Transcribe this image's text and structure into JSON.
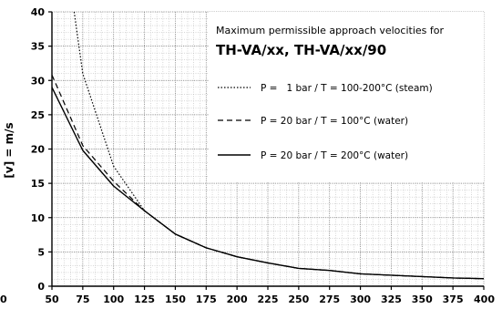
{
  "chart_data": {
    "type": "line",
    "title_line1": "Maximum permissible approach velocities for",
    "title_line2": "TH-VA/xx, TH-VA/xx/90",
    "xlabel": "",
    "ylabel": "[v] = m/s",
    "xlim": [
      50,
      400
    ],
    "ylim": [
      0,
      40
    ],
    "x_ticks": [
      50,
      75,
      100,
      125,
      150,
      175,
      200,
      225,
      250,
      275,
      300,
      325,
      350,
      375,
      400
    ],
    "y_ticks": [
      0,
      5,
      10,
      15,
      20,
      25,
      30,
      35,
      40
    ],
    "x_tick_labels": [
      "50",
      "75",
      "100",
      "125",
      "150",
      "175",
      "200",
      "225",
      "250",
      "275",
      "300",
      "325",
      "350",
      "375",
      "400"
    ],
    "y_tick_labels": [
      "0",
      "5",
      "10",
      "15",
      "20",
      "25",
      "30",
      "35",
      "40"
    ],
    "stray_left_label": "0",
    "grid": true,
    "legend_position": "top-right",
    "series": [
      {
        "name": "P =   1 bar / T = 100-200°C (steam)",
        "style": "dotted",
        "x": [
          68,
          75,
          100,
          125,
          150,
          175,
          200,
          225,
          250,
          275,
          300,
          325,
          350,
          375,
          400
        ],
        "y": [
          40,
          31,
          17.5,
          11,
          7.6,
          5.6,
          4.3,
          3.4,
          2.6,
          2.3,
          1.8,
          1.6,
          1.4,
          1.2,
          1.1
        ]
      },
      {
        "name": "P = 20 bar / T = 100°C (water)",
        "style": "dashed",
        "x": [
          50,
          75,
          100,
          125,
          150,
          175,
          200,
          225,
          250,
          275,
          300,
          325,
          350,
          375,
          400
        ],
        "y": [
          30.8,
          20.5,
          15.3,
          11,
          7.6,
          5.6,
          4.3,
          3.4,
          2.6,
          2.3,
          1.8,
          1.6,
          1.4,
          1.2,
          1.1
        ]
      },
      {
        "name": "P = 20 bar / T = 200°C (water)",
        "style": "solid",
        "x": [
          50,
          75,
          100,
          125,
          150,
          175,
          200,
          225,
          250,
          275,
          300,
          325,
          350,
          375,
          400
        ],
        "y": [
          29,
          19.8,
          14.6,
          11,
          7.6,
          5.6,
          4.3,
          3.4,
          2.6,
          2.3,
          1.8,
          1.6,
          1.4,
          1.2,
          1.1
        ]
      }
    ],
    "colors": {
      "background": "#ffffff",
      "grid": "#888888",
      "line": "#000000"
    }
  }
}
